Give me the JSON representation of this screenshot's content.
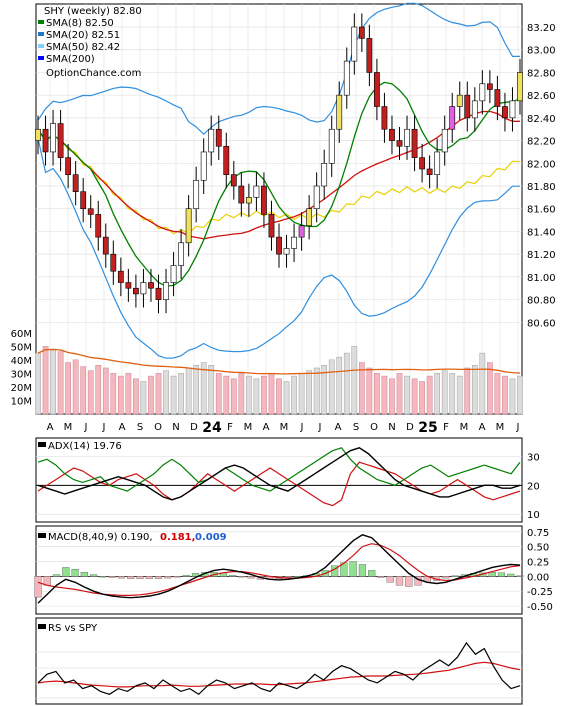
{
  "chart_data": {
    "type": "line",
    "symbol": "SHY",
    "period": "weekly",
    "source_label": "OptionChance.com",
    "months": [
      "A",
      "M",
      "J",
      "J",
      "A",
      "S",
      "O",
      "N",
      "D",
      "24",
      "F",
      "M",
      "A",
      "M",
      "J",
      "J",
      "A",
      "S",
      "O",
      "N",
      "D",
      "25",
      "F",
      "M",
      "A",
      "M",
      "J"
    ],
    "panels": [
      {
        "id": "price",
        "legend": [
          {
            "label": "SHY (weekly) 82.80",
            "color": "#000000"
          },
          {
            "label": "SMA(8) 82.50",
            "color": "#008000"
          },
          {
            "label": "SMA(20) 82.51",
            "color": "#1f77d0"
          },
          {
            "label": "SMA(50) 82.42",
            "color": "#87cefa"
          },
          {
            "label": "SMA(200)",
            "color": "#0000ff"
          }
        ],
        "ylim": [
          80.4,
          83.35
        ],
        "yticks": [
          "80.60",
          "80.80",
          "81.00",
          "81.20",
          "81.40",
          "81.60",
          "81.80",
          "82.00",
          "82.20",
          "82.40",
          "82.60",
          "82.80",
          "83.00",
          "83.20"
        ],
        "close": [
          82.3,
          82.1,
          82.35,
          82.05,
          81.9,
          81.75,
          81.6,
          81.55,
          81.35,
          81.2,
          81.05,
          80.95,
          80.9,
          80.85,
          80.95,
          80.9,
          80.8,
          80.95,
          81.1,
          81.3,
          81.6,
          81.85,
          82.1,
          82.3,
          82.15,
          81.9,
          81.8,
          81.65,
          81.7,
          81.8,
          81.55,
          81.35,
          81.2,
          81.25,
          81.35,
          81.45,
          81.6,
          81.8,
          82.0,
          82.3,
          82.6,
          82.9,
          83.2,
          83.1,
          82.8,
          82.5,
          82.3,
          82.2,
          82.15,
          82.3,
          82.05,
          81.95,
          81.9,
          82.1,
          82.3,
          82.5,
          82.6,
          82.4,
          82.55,
          82.7,
          82.65,
          82.5,
          82.4,
          82.55,
          82.8
        ],
        "volume": [
          45,
          50,
          48,
          46,
          38,
          40,
          35,
          32,
          36,
          34,
          30,
          28,
          30,
          26,
          24,
          28,
          30,
          32,
          28,
          30,
          34,
          36,
          38,
          36,
          30,
          28,
          26,
          30,
          28,
          26,
          28,
          30,
          26,
          24,
          28,
          30,
          32,
          34,
          36,
          40,
          42,
          45,
          50,
          38,
          34,
          30,
          28,
          26,
          30,
          28,
          26,
          24,
          28,
          30,
          32,
          30,
          28,
          34,
          36,
          45,
          38,
          30,
          28,
          26,
          28
        ],
        "volume_axis": [
          "60M",
          "50M",
          "40M",
          "30M",
          "20M",
          "10M"
        ]
      },
      {
        "id": "adx",
        "label": "ADX(14) 19.76",
        "ylim": [
          8,
          35
        ],
        "yticks": [
          "30",
          "20",
          "10"
        ],
        "adx": [
          20,
          19,
          18,
          17,
          18,
          19,
          20,
          21,
          22,
          23,
          22,
          21,
          20,
          18,
          16,
          15,
          16,
          18,
          20,
          22,
          24,
          26,
          27,
          26,
          24,
          22,
          20,
          19,
          18,
          20,
          22,
          24,
          26,
          28,
          30,
          32,
          33,
          31,
          28,
          25,
          22,
          20,
          19,
          18,
          17,
          16,
          16,
          17,
          18,
          19,
          20,
          20,
          19,
          19,
          20
        ],
        "di_plus": [
          28,
          29,
          27,
          24,
          22,
          21,
          22,
          23,
          20,
          19,
          18,
          20,
          22,
          24,
          27,
          29,
          27,
          24,
          21,
          22,
          24,
          26,
          24,
          22,
          20,
          19,
          18,
          20,
          22,
          24,
          26,
          28,
          30,
          32,
          33,
          29,
          26,
          24,
          22,
          21,
          20,
          22,
          24,
          26,
          27,
          25,
          23,
          24,
          25,
          26,
          27,
          26,
          25,
          24,
          28
        ],
        "di_minus": [
          18,
          20,
          22,
          24,
          26,
          25,
          23,
          21,
          20,
          22,
          23,
          24,
          22,
          20,
          17,
          15,
          16,
          18,
          21,
          24,
          22,
          20,
          18,
          20,
          22,
          24,
          26,
          24,
          22,
          20,
          18,
          16,
          14,
          13,
          15,
          24,
          28,
          27,
          26,
          25,
          24,
          22,
          20,
          18,
          17,
          18,
          20,
          22,
          20,
          18,
          16,
          15,
          16,
          17,
          18
        ]
      },
      {
        "id": "macd",
        "label": "MACD(8,40,9) 0.190,",
        "signal_label": "0.181,",
        "hist_label": "0.009",
        "ylim": [
          -0.6,
          0.78
        ],
        "yticks": [
          "0.75",
          "0.50",
          "0.25",
          "0.00",
          "-0.25",
          "-0.50"
        ],
        "macd": [
          -0.45,
          -0.3,
          -0.15,
          -0.05,
          -0.1,
          -0.18,
          -0.25,
          -0.3,
          -0.33,
          -0.35,
          -0.36,
          -0.35,
          -0.33,
          -0.3,
          -0.25,
          -0.18,
          -0.1,
          -0.02,
          0.05,
          0.1,
          0.12,
          0.1,
          0.07,
          0.03,
          -0.02,
          -0.05,
          -0.06,
          -0.05,
          -0.03,
          0.0,
          0.05,
          0.15,
          0.3,
          0.45,
          0.6,
          0.7,
          0.65,
          0.5,
          0.35,
          0.2,
          0.05,
          -0.05,
          -0.1,
          -0.12,
          -0.1,
          -0.05,
          0.0,
          0.05,
          0.1,
          0.15,
          0.18,
          0.2,
          0.19
        ],
        "signal": [
          -0.1,
          -0.15,
          -0.18,
          -0.2,
          -0.22,
          -0.25,
          -0.28,
          -0.3,
          -0.31,
          -0.32,
          -0.32,
          -0.31,
          -0.29,
          -0.26,
          -0.22,
          -0.17,
          -0.12,
          -0.07,
          -0.02,
          0.03,
          0.06,
          0.08,
          0.08,
          0.06,
          0.03,
          0.0,
          -0.02,
          -0.03,
          -0.03,
          -0.02,
          0.0,
          0.05,
          0.12,
          0.22,
          0.35,
          0.5,
          0.55,
          0.52,
          0.45,
          0.35,
          0.22,
          0.1,
          0.0,
          -0.05,
          -0.07,
          -0.06,
          -0.03,
          0.0,
          0.04,
          0.08,
          0.12,
          0.16,
          0.18
        ]
      },
      {
        "id": "rs",
        "label": "RS vs SPY",
        "rs": [
          0.3,
          0.45,
          0.5,
          0.3,
          0.35,
          0.2,
          0.25,
          0.15,
          0.1,
          0.2,
          0.15,
          0.25,
          0.3,
          0.2,
          0.35,
          0.25,
          0.15,
          0.2,
          0.1,
          0.25,
          0.35,
          0.3,
          0.2,
          0.25,
          0.3,
          0.2,
          0.15,
          0.3,
          0.25,
          0.2,
          0.3,
          0.45,
          0.35,
          0.5,
          0.6,
          0.55,
          0.45,
          0.35,
          0.3,
          0.4,
          0.5,
          0.45,
          0.35,
          0.5,
          0.6,
          0.7,
          0.6,
          0.75,
          1.0,
          0.8,
          0.9,
          0.6,
          0.35,
          0.2,
          0.25
        ],
        "rs_ma": [
          0.3,
          0.32,
          0.33,
          0.32,
          0.3,
          0.28,
          0.26,
          0.25,
          0.24,
          0.23,
          0.23,
          0.24,
          0.25,
          0.25,
          0.25,
          0.26,
          0.25,
          0.24,
          0.24,
          0.25,
          0.26,
          0.27,
          0.28,
          0.28,
          0.28,
          0.28,
          0.27,
          0.27,
          0.28,
          0.29,
          0.3,
          0.32,
          0.34,
          0.36,
          0.38,
          0.4,
          0.41,
          0.42,
          0.42,
          0.42,
          0.43,
          0.44,
          0.45,
          0.46,
          0.48,
          0.5,
          0.52,
          0.56,
          0.6,
          0.64,
          0.66,
          0.64,
          0.6,
          0.56,
          0.53
        ]
      }
    ]
  }
}
